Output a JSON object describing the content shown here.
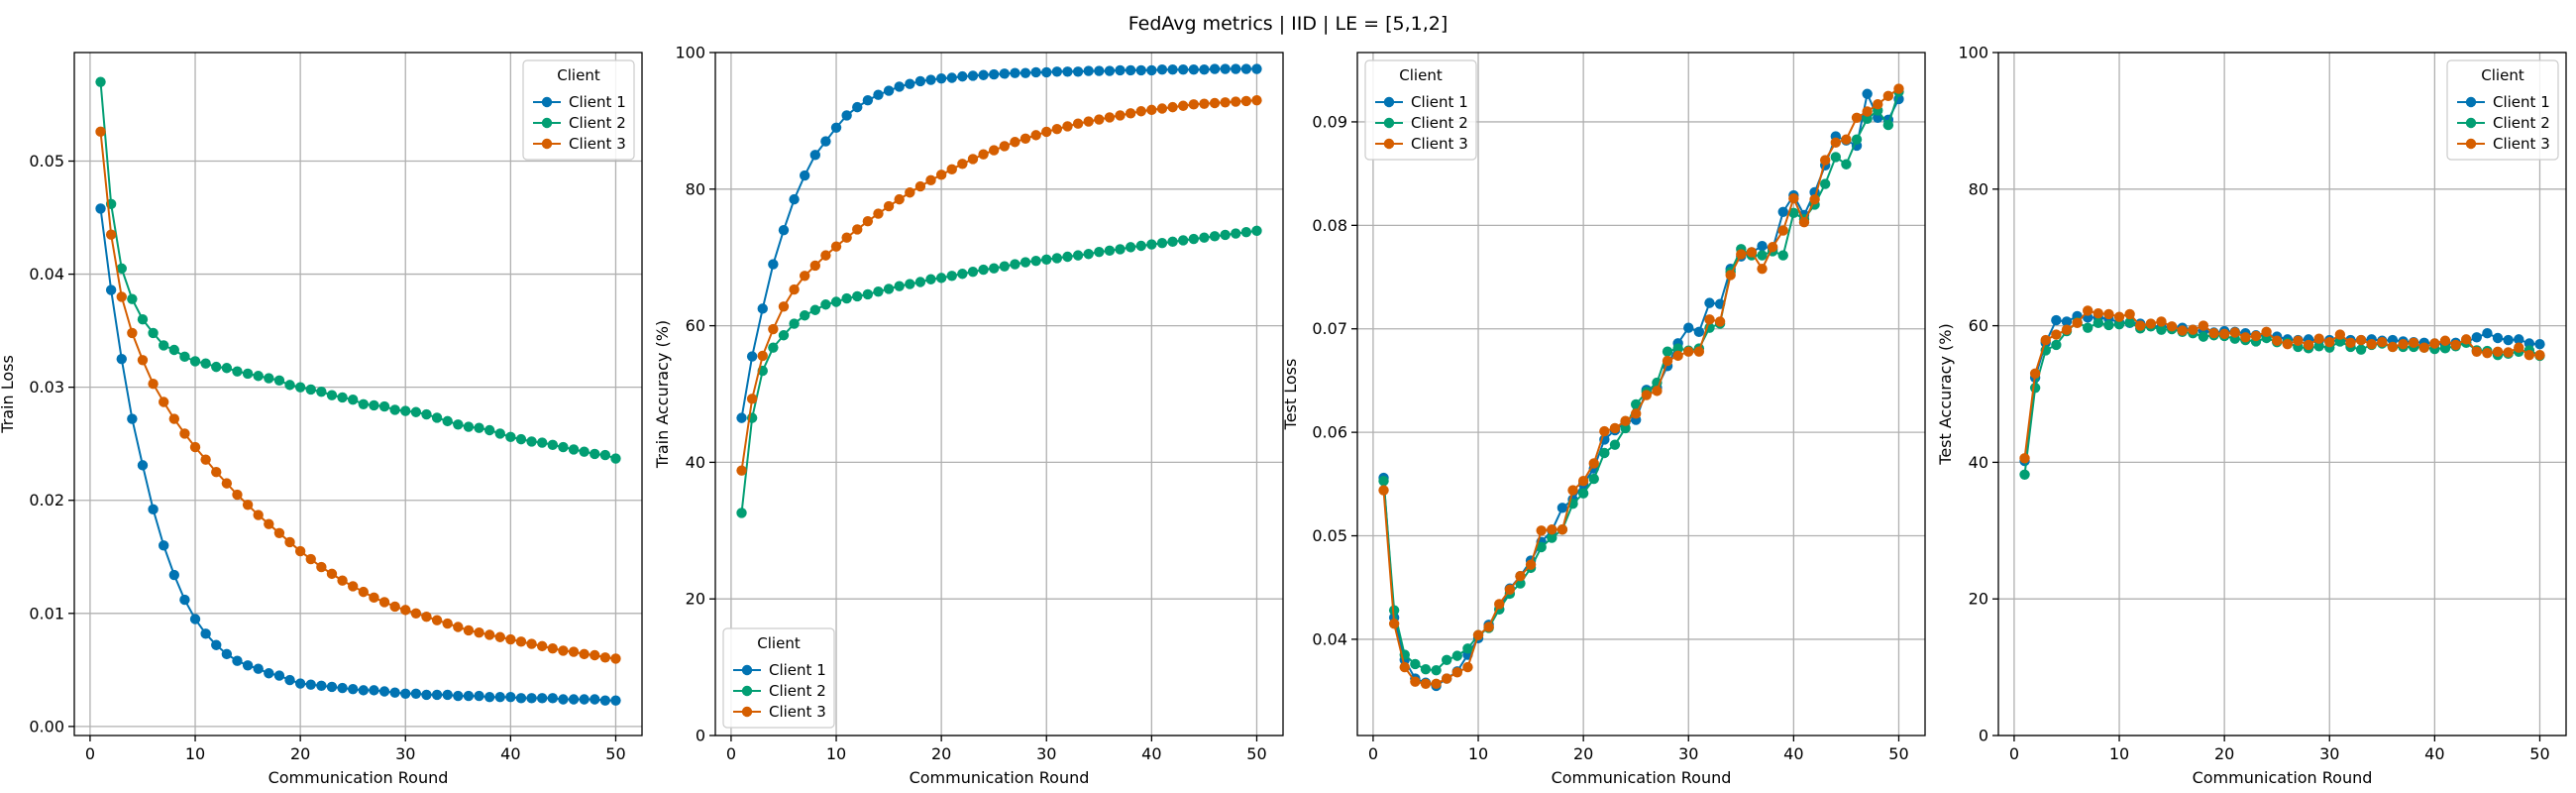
{
  "figure": {
    "title": "FedAvg metrics | IID | LE = [5,1,2]"
  },
  "colors": {
    "Client 1": "#0173b2",
    "Client 2": "#029e73",
    "Client 3": "#d55e00"
  },
  "chart_data": [
    {
      "type": "line",
      "xlabel": "Communication Round",
      "ylabel": "Train Loss",
      "xlim": [
        -1.5,
        52.5
      ],
      "ylim": [
        -0.0008,
        0.0596
      ],
      "xticks": [
        0,
        10,
        20,
        30,
        40,
        50
      ],
      "yticks": [
        0.0,
        0.01,
        0.02,
        0.03,
        0.04,
        0.05
      ],
      "ytick_labels": [
        "0.00",
        "0.01",
        "0.02",
        "0.03",
        "0.04",
        "0.05"
      ],
      "legend_title": "Client",
      "legend_position": "upper right",
      "x": [
        1,
        2,
        3,
        4,
        5,
        6,
        7,
        8,
        9,
        10,
        11,
        12,
        13,
        14,
        15,
        16,
        17,
        18,
        19,
        20,
        21,
        22,
        23,
        24,
        25,
        26,
        27,
        28,
        29,
        30,
        31,
        32,
        33,
        34,
        35,
        36,
        37,
        38,
        39,
        40,
        41,
        42,
        43,
        44,
        45,
        46,
        47,
        48,
        49,
        50
      ],
      "series": [
        {
          "name": "Client 1",
          "values": [
            0.0458,
            0.0386,
            0.0325,
            0.0272,
            0.0231,
            0.0192,
            0.016,
            0.0134,
            0.0112,
            0.0095,
            0.0082,
            0.0072,
            0.0064,
            0.0058,
            0.0054,
            0.0051,
            0.0047,
            0.0045,
            0.0041,
            0.0038,
            0.0037,
            0.0036,
            0.0035,
            0.0034,
            0.0033,
            0.0032,
            0.0032,
            0.0031,
            0.003,
            0.0029,
            0.0029,
            0.0028,
            0.0028,
            0.0028,
            0.0027,
            0.0027,
            0.0027,
            0.0026,
            0.0026,
            0.0026,
            0.0025,
            0.0025,
            0.0025,
            0.0025,
            0.0024,
            0.0024,
            0.0024,
            0.0024,
            0.0023,
            0.0023
          ]
        },
        {
          "name": "Client 2",
          "values": [
            0.057,
            0.0462,
            0.0405,
            0.0378,
            0.036,
            0.0348,
            0.0337,
            0.0333,
            0.0327,
            0.0323,
            0.0321,
            0.0318,
            0.0317,
            0.0314,
            0.0312,
            0.031,
            0.0308,
            0.0306,
            0.0302,
            0.03,
            0.0298,
            0.0296,
            0.0293,
            0.0291,
            0.0289,
            0.0285,
            0.0284,
            0.0283,
            0.028,
            0.0279,
            0.0278,
            0.0276,
            0.0273,
            0.027,
            0.0267,
            0.0265,
            0.0264,
            0.0262,
            0.0259,
            0.0256,
            0.0254,
            0.0252,
            0.0251,
            0.0249,
            0.0247,
            0.0245,
            0.0243,
            0.0241,
            0.024,
            0.0237
          ]
        },
        {
          "name": "Client 3",
          "values": [
            0.0526,
            0.0435,
            0.038,
            0.0348,
            0.0324,
            0.0303,
            0.0287,
            0.0272,
            0.0259,
            0.0247,
            0.0236,
            0.0225,
            0.0215,
            0.0205,
            0.0196,
            0.0187,
            0.0179,
            0.0171,
            0.0163,
            0.0155,
            0.0148,
            0.0141,
            0.0135,
            0.0129,
            0.0124,
            0.0119,
            0.0114,
            0.011,
            0.0106,
            0.0103,
            0.01,
            0.0097,
            0.0094,
            0.0091,
            0.0088,
            0.0085,
            0.0083,
            0.0081,
            0.0079,
            0.0077,
            0.0075,
            0.0073,
            0.0071,
            0.0069,
            0.0067,
            0.0066,
            0.0064,
            0.0063,
            0.0061,
            0.006
          ]
        }
      ]
    },
    {
      "type": "line",
      "xlabel": "Communication Round",
      "ylabel": "Train Accuracy (%)",
      "xlim": [
        -1.5,
        52.5
      ],
      "ylim": [
        0,
        100
      ],
      "xticks": [
        0,
        10,
        20,
        30,
        40,
        50
      ],
      "yticks": [
        0,
        20,
        40,
        60,
        80,
        100
      ],
      "ytick_labels": [
        "0",
        "20",
        "40",
        "60",
        "80",
        "100"
      ],
      "legend_title": "Client",
      "legend_position": "lower left",
      "x": [
        1,
        2,
        3,
        4,
        5,
        6,
        7,
        8,
        9,
        10,
        11,
        12,
        13,
        14,
        15,
        16,
        17,
        18,
        19,
        20,
        21,
        22,
        23,
        24,
        25,
        26,
        27,
        28,
        29,
        30,
        31,
        32,
        33,
        34,
        35,
        36,
        37,
        38,
        39,
        40,
        41,
        42,
        43,
        44,
        45,
        46,
        47,
        48,
        49,
        50
      ],
      "series": [
        {
          "name": "Client 1",
          "values": [
            46.5,
            55.5,
            62.5,
            69.0,
            74.0,
            78.5,
            82.0,
            85.0,
            87.0,
            89.0,
            90.8,
            92.0,
            93.0,
            93.8,
            94.4,
            95.0,
            95.4,
            95.8,
            96.0,
            96.2,
            96.3,
            96.5,
            96.6,
            96.7,
            96.8,
            96.9,
            97.0,
            97.0,
            97.1,
            97.1,
            97.2,
            97.2,
            97.2,
            97.3,
            97.3,
            97.3,
            97.4,
            97.4,
            97.4,
            97.4,
            97.5,
            97.5,
            97.5,
            97.5,
            97.5,
            97.6,
            97.6,
            97.6,
            97.6,
            97.6
          ]
        },
        {
          "name": "Client 2",
          "values": [
            32.6,
            46.5,
            53.4,
            56.8,
            58.6,
            60.3,
            61.5,
            62.3,
            63.1,
            63.5,
            64.0,
            64.3,
            64.6,
            65.0,
            65.4,
            65.8,
            66.1,
            66.4,
            66.8,
            67.0,
            67.3,
            67.6,
            67.9,
            68.2,
            68.4,
            68.7,
            69.0,
            69.3,
            69.5,
            69.7,
            69.9,
            70.1,
            70.3,
            70.5,
            70.8,
            71.0,
            71.2,
            71.5,
            71.7,
            71.9,
            72.1,
            72.3,
            72.5,
            72.7,
            72.9,
            73.1,
            73.3,
            73.5,
            73.7,
            73.9
          ]
        },
        {
          "name": "Client 3",
          "values": [
            38.8,
            49.3,
            55.6,
            59.5,
            62.8,
            65.3,
            67.3,
            68.8,
            70.3,
            71.6,
            72.9,
            74.1,
            75.3,
            76.4,
            77.5,
            78.5,
            79.5,
            80.4,
            81.3,
            82.1,
            82.9,
            83.7,
            84.4,
            85.1,
            85.7,
            86.3,
            86.9,
            87.4,
            87.9,
            88.4,
            88.8,
            89.2,
            89.6,
            89.9,
            90.2,
            90.5,
            90.8,
            91.1,
            91.4,
            91.6,
            91.8,
            92.0,
            92.2,
            92.4,
            92.5,
            92.6,
            92.7,
            92.8,
            92.9,
            93.0
          ]
        }
      ]
    },
    {
      "type": "line",
      "xlabel": "Communication Round",
      "ylabel": "Test Loss",
      "xlim": [
        -1.5,
        52.5
      ],
      "ylim": [
        0.0307,
        0.0967
      ],
      "xticks": [
        0,
        10,
        20,
        30,
        40,
        50
      ],
      "yticks": [
        0.04,
        0.05,
        0.06,
        0.07,
        0.08,
        0.09
      ],
      "ytick_labels": [
        "0.04",
        "0.05",
        "0.06",
        "0.07",
        "0.08",
        "0.09"
      ],
      "legend_title": "Client",
      "legend_position": "upper left",
      "x": [
        1,
        2,
        3,
        4,
        5,
        6,
        7,
        8,
        9,
        10,
        11,
        12,
        13,
        14,
        15,
        16,
        17,
        18,
        19,
        20,
        21,
        22,
        23,
        24,
        25,
        26,
        27,
        28,
        29,
        30,
        31,
        32,
        33,
        34,
        35,
        36,
        37,
        38,
        39,
        40,
        41,
        42,
        43,
        44,
        45,
        46,
        47,
        48,
        49,
        50
      ],
      "series": [
        {
          "name": "Client 1",
          "values": [
            0.0556,
            0.0421,
            0.038,
            0.0362,
            0.0358,
            0.0355,
            0.0362,
            0.0369,
            0.0385,
            0.0401,
            0.0414,
            0.0429,
            0.0449,
            0.0461,
            0.0476,
            0.0494,
            0.0505,
            0.0527,
            0.0535,
            0.055,
            0.0565,
            0.0593,
            0.0602,
            0.061,
            0.0612,
            0.0641,
            0.0643,
            0.0664,
            0.0686,
            0.0701,
            0.0697,
            0.0725,
            0.0724,
            0.0758,
            0.077,
            0.0774,
            0.078,
            0.0777,
            0.0813,
            0.0829,
            0.081,
            0.0832,
            0.0858,
            0.0886,
            0.0882,
            0.0877,
            0.0927,
            0.0904,
            0.0902,
            0.0922
          ]
        },
        {
          "name": "Client 2",
          "values": [
            0.0553,
            0.0428,
            0.0385,
            0.0376,
            0.0371,
            0.037,
            0.038,
            0.0384,
            0.0391,
            0.0404,
            0.0411,
            0.0429,
            0.0444,
            0.0454,
            0.0469,
            0.0489,
            0.0498,
            0.0506,
            0.0531,
            0.0541,
            0.0555,
            0.058,
            0.0588,
            0.0604,
            0.0627,
            0.0639,
            0.0648,
            0.0678,
            0.0681,
            0.0679,
            0.0681,
            0.0701,
            0.0705,
            0.0755,
            0.0777,
            0.0771,
            0.0771,
            0.0775,
            0.0771,
            0.0812,
            0.0806,
            0.082,
            0.084,
            0.0866,
            0.0859,
            0.0883,
            0.0903,
            0.0911,
            0.0897,
            0.0929
          ]
        },
        {
          "name": "Client 3",
          "values": [
            0.0544,
            0.0415,
            0.0373,
            0.0359,
            0.0357,
            0.0357,
            0.0362,
            0.0368,
            0.0373,
            0.0404,
            0.0412,
            0.0434,
            0.0448,
            0.0461,
            0.0472,
            0.0505,
            0.0506,
            0.0506,
            0.0544,
            0.0553,
            0.057,
            0.0601,
            0.0604,
            0.0611,
            0.0618,
            0.0636,
            0.064,
            0.0669,
            0.0674,
            0.0678,
            0.0678,
            0.0709,
            0.0707,
            0.0752,
            0.0772,
            0.0774,
            0.0758,
            0.0779,
            0.0795,
            0.0826,
            0.0803,
            0.0825,
            0.0863,
            0.088,
            0.0883,
            0.0904,
            0.091,
            0.0917,
            0.0925,
            0.0932
          ]
        }
      ]
    },
    {
      "type": "line",
      "xlabel": "Communication Round",
      "ylabel": "Test Accuracy (%)",
      "xlim": [
        -1.5,
        52.5
      ],
      "ylim": [
        0,
        100
      ],
      "xticks": [
        0,
        10,
        20,
        30,
        40,
        50
      ],
      "yticks": [
        0,
        20,
        40,
        60,
        80,
        100
      ],
      "ytick_labels": [
        "0",
        "20",
        "40",
        "60",
        "80",
        "100"
      ],
      "legend_title": "Client",
      "legend_position": "upper right",
      "x": [
        1,
        2,
        3,
        4,
        5,
        6,
        7,
        8,
        9,
        10,
        11,
        12,
        13,
        14,
        15,
        16,
        17,
        18,
        19,
        20,
        21,
        22,
        23,
        24,
        25,
        26,
        27,
        28,
        29,
        30,
        31,
        32,
        33,
        34,
        35,
        36,
        37,
        38,
        39,
        40,
        41,
        42,
        43,
        44,
        45,
        46,
        47,
        48,
        49,
        50
      ],
      "series": [
        {
          "name": "Client 1",
          "values": [
            40.2,
            52.4,
            57.5,
            60.8,
            60.6,
            61.4,
            61.2,
            61.2,
            61.0,
            60.5,
            60.4,
            60.3,
            60.0,
            59.8,
            59.8,
            59.7,
            59.4,
            59.2,
            59.0,
            59.2,
            59.1,
            58.9,
            58.6,
            58.5,
            58.4,
            58.0,
            57.9,
            58.0,
            57.8,
            57.9,
            57.7,
            57.9,
            57.9,
            58.0,
            57.8,
            57.9,
            57.7,
            57.6,
            57.5,
            57.4,
            57.3,
            57.5,
            57.6,
            58.3,
            58.9,
            58.2,
            57.9,
            58.0,
            57.4,
            57.3
          ]
        },
        {
          "name": "Client 2",
          "values": [
            38.2,
            50.9,
            56.4,
            57.2,
            59.2,
            60.5,
            59.7,
            60.4,
            60.1,
            60.2,
            60.5,
            59.6,
            59.9,
            59.4,
            59.5,
            59.1,
            58.9,
            58.4,
            58.6,
            58.5,
            58.1,
            57.9,
            57.7,
            58.2,
            57.6,
            57.5,
            56.9,
            56.7,
            57.0,
            56.8,
            57.7,
            56.9,
            56.5,
            57.2,
            57.4,
            56.9,
            56.9,
            56.9,
            56.8,
            56.6,
            56.7,
            57.0,
            57.5,
            56.4,
            56.3,
            55.7,
            55.9,
            56.2,
            56.4,
            55.6
          ]
        },
        {
          "name": "Client 3",
          "values": [
            40.6,
            53.0,
            57.9,
            58.7,
            59.4,
            60.4,
            62.2,
            61.8,
            61.7,
            61.3,
            61.7,
            60.0,
            60.3,
            60.6,
            59.9,
            59.3,
            59.4,
            60.0,
            58.9,
            58.8,
            59.0,
            58.3,
            58.5,
            59.1,
            57.8,
            57.3,
            57.8,
            57.2,
            58.1,
            57.6,
            58.7,
            57.5,
            57.9,
            57.3,
            57.6,
            56.9,
            57.3,
            57.5,
            56.8,
            57.4,
            57.8,
            57.2,
            58.0,
            56.2,
            56.0,
            56.2,
            56.1,
            56.8,
            55.7,
            55.7
          ]
        }
      ]
    }
  ]
}
